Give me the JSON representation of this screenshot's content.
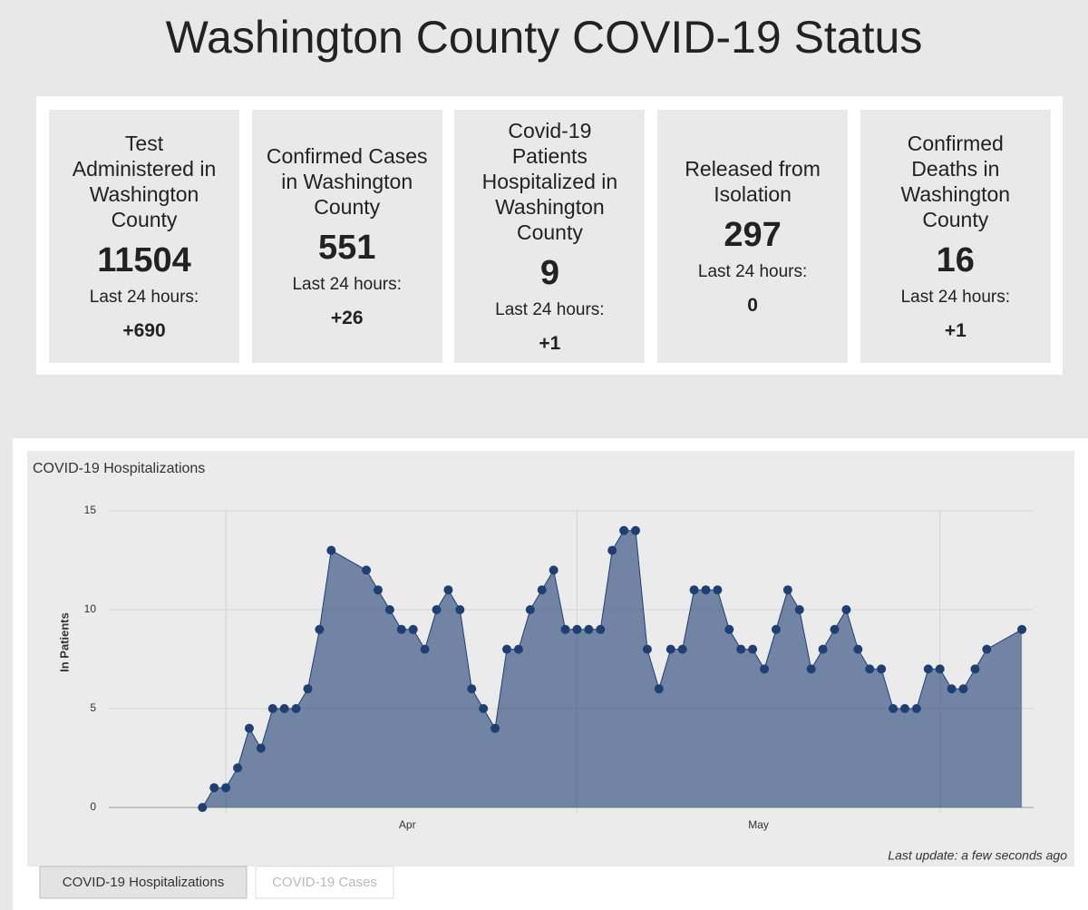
{
  "header": {
    "title": "Washington County COVID-19 Status"
  },
  "cards": [
    {
      "title": "Test Administered in Washington County",
      "value": 11504,
      "label": "Last 24 hours:",
      "change": "+690"
    },
    {
      "title": "Confirmed Cases in Washington County",
      "value": 551,
      "label": "Last 24 hours:",
      "change": "+26"
    },
    {
      "title": "Covid-19 Patients Hospitalized in Washington County",
      "value": 9,
      "label": "Last 24 hours:",
      "change": "+1"
    },
    {
      "title": "Released from Isolation",
      "value": 297,
      "label": "Last 24 hours:",
      "change": 0
    },
    {
      "title": "Confirmed Deaths in Washington County",
      "value": 16,
      "label": "Last 24 hours:",
      "change": "+1"
    }
  ],
  "chart_data": {
    "type": "area",
    "title": "COVID-19 Hospitalizations",
    "y_label": "In Patients",
    "x": [
      89,
      90,
      91,
      92,
      93,
      94,
      95,
      96,
      97,
      98,
      99,
      100,
      103,
      104,
      105,
      106,
      107,
      108,
      109,
      110,
      111,
      112,
      113,
      114,
      115,
      116,
      117,
      118,
      119,
      120,
      121,
      122,
      123,
      124,
      125,
      126,
      127,
      128,
      129,
      130,
      131,
      132,
      133,
      134,
      135,
      136,
      137,
      138,
      139,
      140,
      141,
      142,
      143,
      144,
      145,
      146,
      147,
      148,
      149,
      150,
      151,
      152,
      153,
      154,
      155,
      156,
      159
    ],
    "series": [
      {
        "name": "In Patients",
        "color": "#1f3f73",
        "values": [
          0,
          1,
          1,
          2,
          4,
          3,
          5,
          5,
          5,
          6,
          9,
          13,
          12,
          11,
          10,
          9,
          9,
          8,
          10,
          11,
          10,
          6,
          5,
          4,
          8,
          8,
          10,
          11,
          12,
          9,
          9,
          9,
          9,
          13,
          14,
          14,
          8,
          6,
          8,
          8,
          11,
          11,
          11,
          9,
          8,
          8,
          7,
          9,
          11,
          10,
          7,
          8,
          9,
          10,
          8,
          7,
          7,
          5,
          5,
          5,
          7,
          7,
          6,
          6,
          7,
          8,
          9
        ]
      }
    ],
    "xlim": [
      81,
      160
    ],
    "xticks": [
      {
        "value": 106.5,
        "label": "Apr"
      },
      {
        "value": 136.5,
        "label": "May"
      }
    ],
    "xgrid": [
      91,
      121,
      152
    ],
    "ylim": [
      0,
      15
    ],
    "yticks": [
      0,
      5,
      10,
      15
    ],
    "grid": true,
    "annotation": "Last update: a few seconds ago",
    "tabs": [
      "COVID-19 Hospitalizations",
      "COVID-19 Cases"
    ]
  }
}
